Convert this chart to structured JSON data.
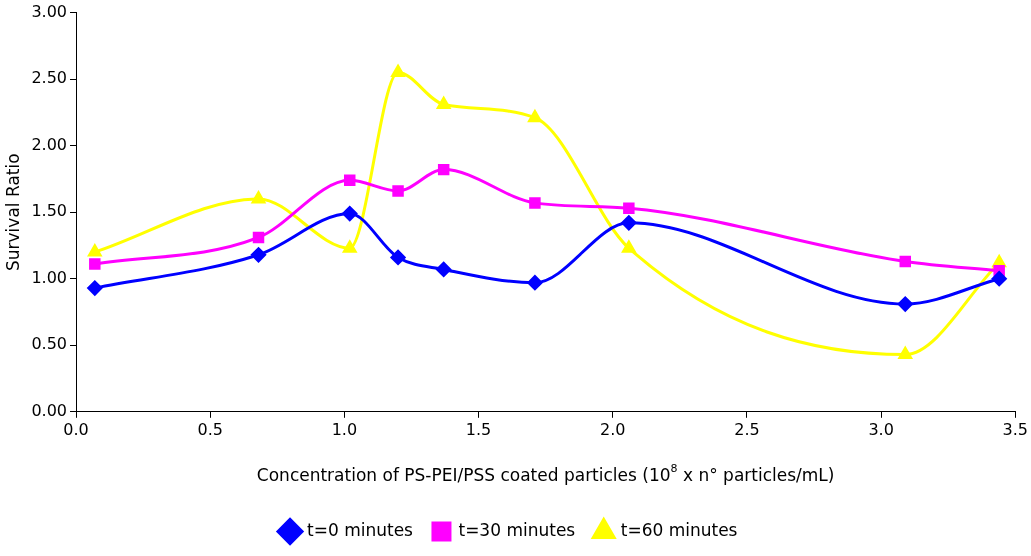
{
  "chart_data": {
    "type": "line",
    "xlabel": "Concentration of PS-PEI/PSS coated particles (10$^{8}$ x n° particles/mL)",
    "ylabel": "Survival Ratio",
    "x": [
      0.07,
      0.68,
      1.02,
      1.2,
      1.37,
      1.71,
      2.06,
      3.09,
      3.44
    ],
    "series": [
      {
        "name": "t=0 minutes",
        "color": "#0000ff",
        "marker": "diamond",
        "values": [
          0.93,
          1.18,
          1.49,
          1.16,
          1.07,
          0.97,
          1.42,
          0.81,
          1.0
        ]
      },
      {
        "name": "t=30 minutes",
        "color": "#ff00ff",
        "marker": "square",
        "values": [
          1.11,
          1.31,
          1.74,
          1.66,
          1.82,
          1.57,
          1.53,
          1.13,
          1.06
        ]
      },
      {
        "name": "t=60 minutes",
        "color": "#ffff00",
        "marker": "triangle",
        "values": [
          1.2,
          1.6,
          1.23,
          2.55,
          2.31,
          2.21,
          1.23,
          0.43,
          1.12
        ]
      }
    ],
    "xlim": [
      0,
      3.5
    ],
    "xticks": [
      {
        "value": 0,
        "label": "0.0"
      },
      {
        "value": 0.5,
        "label": "0.5"
      },
      {
        "value": 1,
        "label": "1.0"
      },
      {
        "value": 1.5,
        "label": "1.5"
      },
      {
        "value": 2,
        "label": "2.0"
      },
      {
        "value": 2.5,
        "label": "2.5"
      },
      {
        "value": 3,
        "label": "3.0"
      },
      {
        "value": 3.5,
        "label": "3.5"
      }
    ],
    "ylim": [
      0,
      3
    ],
    "yticks": [
      {
        "value": 0,
        "label": "0.00"
      },
      {
        "value": 0.5,
        "label": "0.50"
      },
      {
        "value": 1,
        "label": "1.00"
      },
      {
        "value": 1.5,
        "label": "1.50"
      },
      {
        "value": 2,
        "label": "2.00"
      },
      {
        "value": 2.5,
        "label": "2.50"
      },
      {
        "value": 3,
        "label": "3.00"
      }
    ],
    "grid": false,
    "legend": "bottom"
  }
}
